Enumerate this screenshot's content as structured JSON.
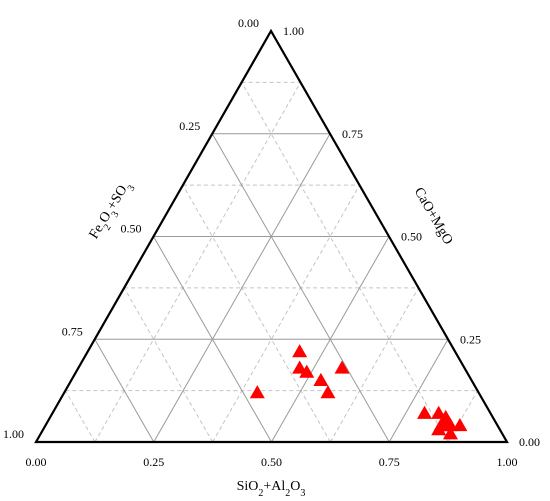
{
  "chart_data": {
    "type": "scatter",
    "subtype": "ternary",
    "axes": {
      "bottom": {
        "label_parts": [
          [
            "SiO",
            false
          ],
          [
            "2",
            true
          ],
          [
            "+Al",
            false
          ],
          [
            "2",
            true
          ],
          [
            "O",
            false
          ],
          [
            "3",
            true
          ]
        ],
        "ticks": [
          "0.00",
          "0.25",
          "0.50",
          "0.75",
          "1.00"
        ]
      },
      "left": {
        "label_parts": [
          [
            "Fe",
            false
          ],
          [
            "2",
            true
          ],
          [
            "O",
            false
          ],
          [
            "3",
            true
          ],
          [
            "+SO",
            false
          ],
          [
            "3",
            true
          ]
        ],
        "ticks": [
          "0.00",
          "0.25",
          "0.50",
          "0.75",
          "1.00"
        ]
      },
      "right": {
        "label_parts": [
          [
            "CaO+MgO",
            false
          ]
        ],
        "ticks": [
          "0.00",
          "0.25",
          "0.50",
          "0.75",
          "1.00"
        ]
      }
    },
    "grid": true,
    "marker": {
      "shape": "triangle",
      "color": "#ff0000"
    },
    "points": [
      {
        "a": 0.45,
        "b": 0.33,
        "c": 0.22
      },
      {
        "a": 0.47,
        "b": 0.35,
        "c": 0.18
      },
      {
        "a": 0.49,
        "b": 0.34,
        "c": 0.17
      },
      {
        "a": 0.41,
        "b": 0.47,
        "c": 0.12
      },
      {
        "a": 0.53,
        "b": 0.32,
        "c": 0.15
      },
      {
        "a": 0.56,
        "b": 0.26,
        "c": 0.18
      },
      {
        "a": 0.56,
        "b": 0.32,
        "c": 0.12
      },
      {
        "a": 0.79,
        "b": 0.14,
        "c": 0.07
      },
      {
        "a": 0.82,
        "b": 0.11,
        "c": 0.07
      },
      {
        "a": 0.84,
        "b": 0.1,
        "c": 0.06
      },
      {
        "a": 0.84,
        "b": 0.12,
        "c": 0.04
      },
      {
        "a": 0.86,
        "b": 0.1,
        "c": 0.04
      },
      {
        "a": 0.85,
        "b": 0.11,
        "c": 0.04
      },
      {
        "a": 0.87,
        "b": 0.11,
        "c": 0.02
      },
      {
        "a": 0.84,
        "b": 0.13,
        "c": 0.03
      },
      {
        "a": 0.88,
        "b": 0.08,
        "c": 0.04
      }
    ]
  }
}
